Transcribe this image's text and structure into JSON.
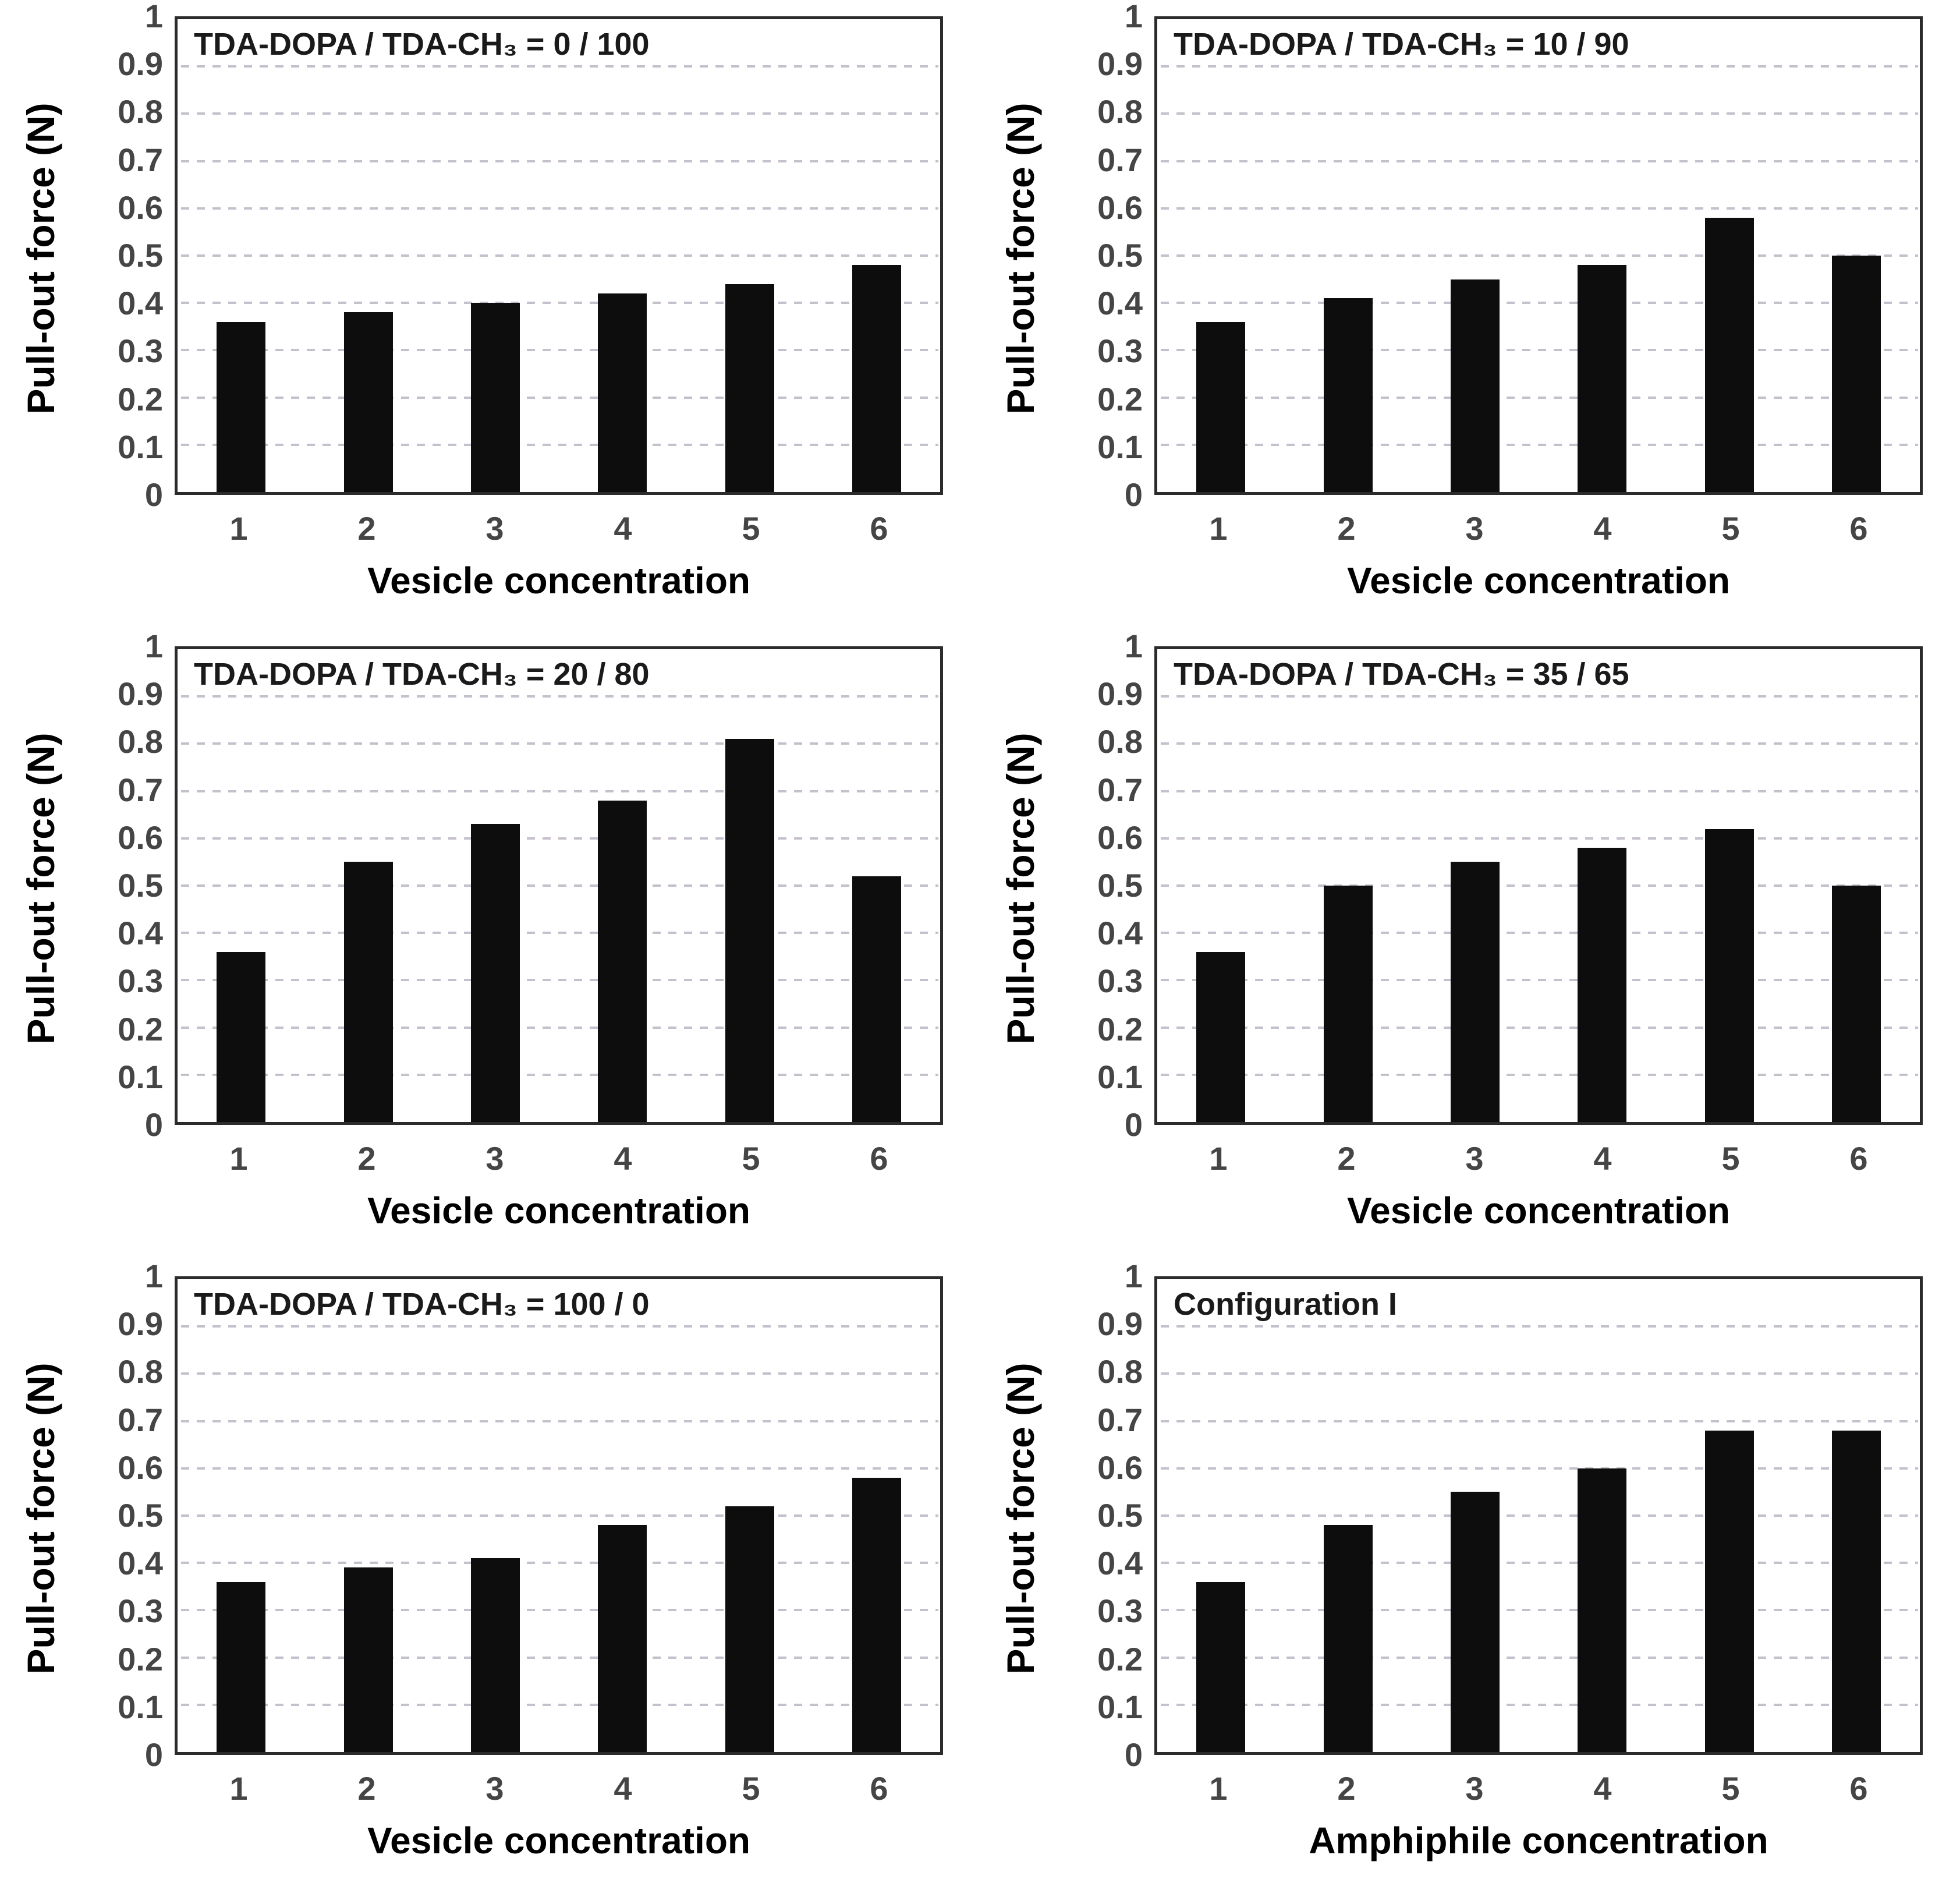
{
  "figure": {
    "background": "#ffffff",
    "bar_color": "#0d0d0d",
    "frame_color": "#2b2b2b",
    "gridline_color": "#c6c0cc",
    "tick_text_color": "#454545",
    "layout": "2x3 grid of bar charts"
  },
  "chart_data": [
    {
      "type": "bar",
      "title": "TDA-DOPA / TDA-CH₃ = 0 / 100",
      "xlabel": "Vesicle concentration",
      "ylabel": "Pull-out force (N)",
      "categories": [
        "1",
        "2",
        "3",
        "4",
        "5",
        "6"
      ],
      "values": [
        0.36,
        0.38,
        0.4,
        0.42,
        0.44,
        0.48
      ],
      "ylim": [
        0,
        1
      ],
      "ytick_labels": [
        "1",
        "0.9",
        "0.8",
        "0.7",
        "0.6",
        "0.5",
        "0.4",
        "0.3",
        "0.2",
        "0.1",
        "0"
      ],
      "grid": "horizontal dashed every 0.1",
      "legend": "none"
    },
    {
      "type": "bar",
      "title": "TDA-DOPA / TDA-CH₃ = 10 / 90",
      "xlabel": "Vesicle concentration",
      "ylabel": "Pull-out force (N)",
      "categories": [
        "1",
        "2",
        "3",
        "4",
        "5",
        "6"
      ],
      "values": [
        0.36,
        0.41,
        0.45,
        0.48,
        0.58,
        0.5
      ],
      "ylim": [
        0,
        1
      ],
      "ytick_labels": [
        "1",
        "0.9",
        "0.8",
        "0.7",
        "0.6",
        "0.5",
        "0.4",
        "0.3",
        "0.2",
        "0.1",
        "0"
      ],
      "grid": "horizontal dashed every 0.1",
      "legend": "none"
    },
    {
      "type": "bar",
      "title": "TDA-DOPA / TDA-CH₃ = 20 / 80",
      "xlabel": "Vesicle concentration",
      "ylabel": "Pull-out force (N)",
      "categories": [
        "1",
        "2",
        "3",
        "4",
        "5",
        "6"
      ],
      "values": [
        0.36,
        0.55,
        0.63,
        0.68,
        0.81,
        0.52
      ],
      "ylim": [
        0,
        1
      ],
      "ytick_labels": [
        "1",
        "0.9",
        "0.8",
        "0.7",
        "0.6",
        "0.5",
        "0.4",
        "0.3",
        "0.2",
        "0.1",
        "0"
      ],
      "grid": "horizontal dashed every 0.1",
      "legend": "none"
    },
    {
      "type": "bar",
      "title": "TDA-DOPA / TDA-CH₃ = 35 / 65",
      "xlabel": "Vesicle concentration",
      "ylabel": "Pull-out force (N)",
      "categories": [
        "1",
        "2",
        "3",
        "4",
        "5",
        "6"
      ],
      "values": [
        0.36,
        0.5,
        0.55,
        0.58,
        0.62,
        0.5
      ],
      "ylim": [
        0,
        1
      ],
      "ytick_labels": [
        "1",
        "0.9",
        "0.8",
        "0.7",
        "0.6",
        "0.5",
        "0.4",
        "0.3",
        "0.2",
        "0.1",
        "0"
      ],
      "grid": "horizontal dashed every 0.1",
      "legend": "none"
    },
    {
      "type": "bar",
      "title": "TDA-DOPA / TDA-CH₃ = 100 / 0",
      "xlabel": "Vesicle concentration",
      "ylabel": "Pull-out force (N)",
      "categories": [
        "1",
        "2",
        "3",
        "4",
        "5",
        "6"
      ],
      "values": [
        0.36,
        0.39,
        0.41,
        0.48,
        0.52,
        0.58
      ],
      "ylim": [
        0,
        1
      ],
      "ytick_labels": [
        "1",
        "0.9",
        "0.8",
        "0.7",
        "0.6",
        "0.5",
        "0.4",
        "0.3",
        "0.2",
        "0.1",
        "0"
      ],
      "grid": "horizontal dashed every 0.1",
      "legend": "none"
    },
    {
      "type": "bar",
      "title": "Configuration I",
      "xlabel": "Amphiphile concentration",
      "ylabel": "Pull-out force (N)",
      "categories": [
        "1",
        "2",
        "3",
        "4",
        "5",
        "6"
      ],
      "values": [
        0.36,
        0.48,
        0.55,
        0.6,
        0.68,
        0.68
      ],
      "ylim": [
        0,
        1
      ],
      "ytick_labels": [
        "1",
        "0.9",
        "0.8",
        "0.7",
        "0.6",
        "0.5",
        "0.4",
        "0.3",
        "0.2",
        "0.1",
        "0"
      ],
      "grid": "horizontal dashed every 0.1",
      "legend": "none"
    }
  ]
}
